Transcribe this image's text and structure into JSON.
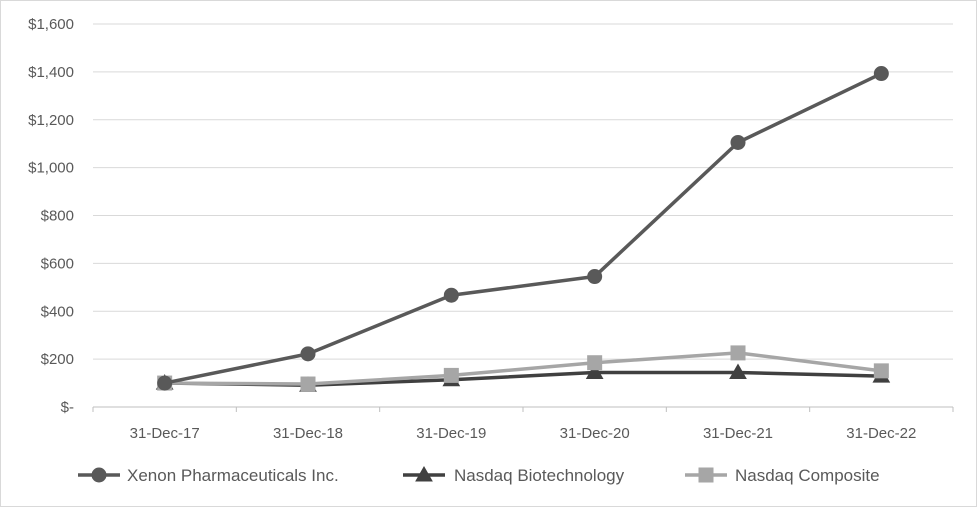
{
  "chart_data": {
    "type": "line",
    "title": "",
    "xlabel": "",
    "ylabel": "",
    "categories": [
      "31-Dec-17",
      "31-Dec-18",
      "31-Dec-19",
      "31-Dec-20",
      "31-Dec-21",
      "31-Dec-22"
    ],
    "ylim": [
      0,
      1600
    ],
    "yticks": [
      {
        "value": 0,
        "label": "$-"
      },
      {
        "value": 200,
        "label": "$200"
      },
      {
        "value": 400,
        "label": "$400"
      },
      {
        "value": 600,
        "label": "$600"
      },
      {
        "value": 800,
        "label": "$800"
      },
      {
        "value": 1000,
        "label": "$1,000"
      },
      {
        "value": 1200,
        "label": "$1,200"
      },
      {
        "value": 1400,
        "label": "$1,400"
      },
      {
        "value": 1600,
        "label": "$1,600"
      }
    ],
    "grid": true,
    "legend_position": "bottom",
    "series": [
      {
        "name": "Xenon Pharmaceuticals Inc.",
        "marker": "circle",
        "color": "#595959",
        "values": [
          100,
          222,
          467,
          545,
          1105,
          1393
        ]
      },
      {
        "name": "Nasdaq Biotechnology",
        "marker": "triangle",
        "color": "#404040",
        "values": [
          100,
          91,
          114,
          144,
          144,
          129
        ]
      },
      {
        "name": "Nasdaq Composite",
        "marker": "square",
        "color": "#a6a6a6",
        "values": [
          100,
          96,
          132,
          185,
          226,
          151
        ]
      }
    ]
  }
}
